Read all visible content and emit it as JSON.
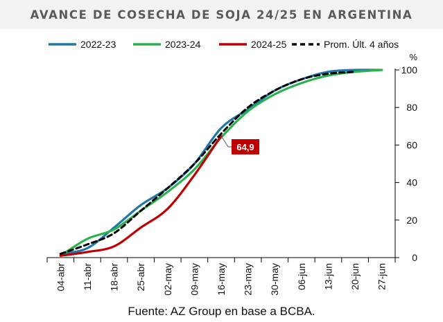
{
  "title": "AVANCE DE COSECHA DE SOJA 24/25 EN ARGENTINA",
  "source": "Fuente: AZ Group en base a BCBA.",
  "colors": {
    "2022-23": "#1f77a8",
    "2023-24": "#2bb24c",
    "2024-25": "#c00000",
    "promedio": "#000000",
    "axis": "#000000",
    "annotation_bg": "#c00000",
    "annotation_text": "#ffffff"
  },
  "chart_data": {
    "type": "line",
    "title": "AVANCE DE COSECHA DE SOJA 24/25 EN ARGENTINA",
    "xlabel": "",
    "ylabel": "%",
    "ylim": [
      0,
      100
    ],
    "yticks": [
      0,
      20,
      40,
      60,
      80,
      100
    ],
    "y_axis_side": "right",
    "grid": false,
    "legend_position": "top",
    "categories": [
      "04-abr",
      "11-abr",
      "18-abr",
      "25-abr",
      "02-may",
      "09-may",
      "16-may",
      "23-may",
      "30-may",
      "06-jun",
      "13-jun",
      "20-jun",
      "27-jun"
    ],
    "series": [
      {
        "name": "2022-23",
        "style": "solid",
        "values": [
          2,
          5,
          16,
          28,
          37,
          50,
          69,
          79,
          89,
          95,
          99,
          100,
          100
        ]
      },
      {
        "name": "2023-24",
        "style": "solid",
        "values": [
          1,
          10,
          15,
          25,
          35,
          47,
          64,
          78,
          87,
          93,
          97,
          99,
          100
        ]
      },
      {
        "name": "2024-25",
        "style": "solid",
        "values": [
          1,
          3,
          6,
          16,
          26,
          44,
          64.9,
          null,
          null,
          null,
          null,
          null,
          null
        ]
      },
      {
        "name": "Prom. Últ. 4 años",
        "style": "dashed",
        "values": [
          2,
          7,
          13,
          25,
          37,
          50,
          66,
          80,
          89,
          95,
          98,
          99,
          null
        ]
      }
    ],
    "annotations": [
      {
        "text": "64,9",
        "series": "2024-25",
        "category": "16-may",
        "value": 64.9
      }
    ]
  }
}
